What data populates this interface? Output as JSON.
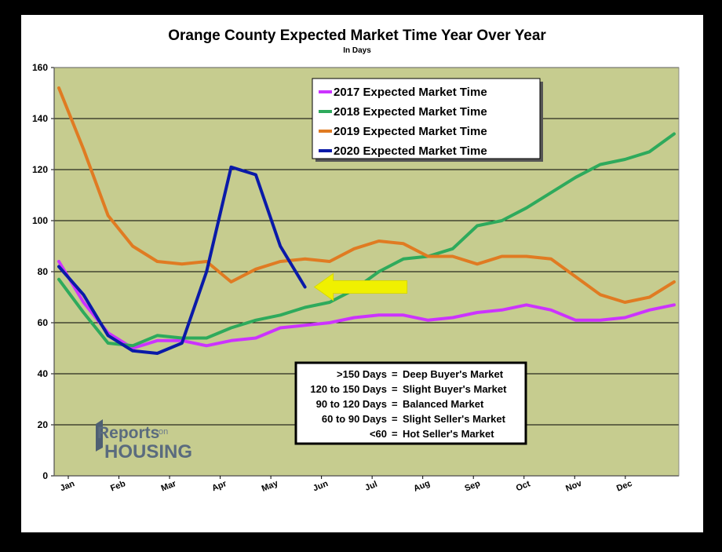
{
  "chart_data": {
    "type": "line",
    "title": "Orange County Expected Market Time Year Over Year",
    "subtitle": "In Days",
    "ylim": [
      0,
      160
    ],
    "yticks": [
      "0",
      "20",
      "40",
      "60",
      "80",
      "100",
      "120",
      "140",
      "160"
    ],
    "x_tick_labels": [
      "Jan",
      "Feb",
      "Mar",
      "Apr",
      "May",
      "Jun",
      "Jul",
      "Aug",
      "Sep",
      "Oct",
      "Nov",
      "Dec"
    ],
    "grid": true,
    "legend_position": "top-center",
    "series": [
      {
        "name": "2017 Expected Market Time",
        "color": "#cc33ff",
        "values": [
          84,
          68,
          56,
          50,
          53,
          53,
          51,
          53,
          54,
          58,
          59,
          60,
          62,
          63,
          63,
          61,
          62,
          64,
          65,
          67,
          65,
          61,
          61,
          62,
          65,
          67
        ]
      },
      {
        "name": "2018 Expected Market Time",
        "color": "#2eaa5c",
        "values": [
          77,
          64,
          52,
          51,
          55,
          54,
          54,
          58,
          61,
          63,
          66,
          68,
          73,
          80,
          85,
          86,
          89,
          98,
          100,
          105,
          111,
          117,
          122,
          124,
          127,
          134
        ]
      },
      {
        "name": "2019 Expected Market Time",
        "color": "#e07b22",
        "values": [
          152,
          128,
          102,
          90,
          84,
          83,
          84,
          76,
          81,
          84,
          85,
          84,
          89,
          92,
          91,
          86,
          86,
          83,
          86,
          86,
          85,
          78,
          71,
          68,
          70,
          76
        ]
      },
      {
        "name": "2020 Expected Market Time",
        "color": "#0a1aa8",
        "values": [
          82,
          71,
          55,
          49,
          48,
          52,
          80,
          121,
          118,
          90,
          74
        ]
      }
    ],
    "market_key": [
      {
        "range": ">150 Days",
        "meaning": "Deep Buyer's Market"
      },
      {
        "range": "120 to 150 Days",
        "meaning": "Slight Buyer's Market"
      },
      {
        "range": "90 to 120 Days",
        "meaning": "Balanced Market"
      },
      {
        "range": "60 to 90 Days",
        "meaning": "Slight Seller's Market"
      },
      {
        "range": "<60",
        "meaning": "Hot Seller's Market"
      }
    ],
    "annotation_arrow": {
      "color": "#f0f000",
      "points_to_value": 74
    }
  },
  "logo": {
    "line1": "Reports",
    "on": "on",
    "line2": "HOUSING"
  },
  "colors": {
    "plot_bg": "#c6cc8f",
    "frame_bg": "#ffffff"
  }
}
